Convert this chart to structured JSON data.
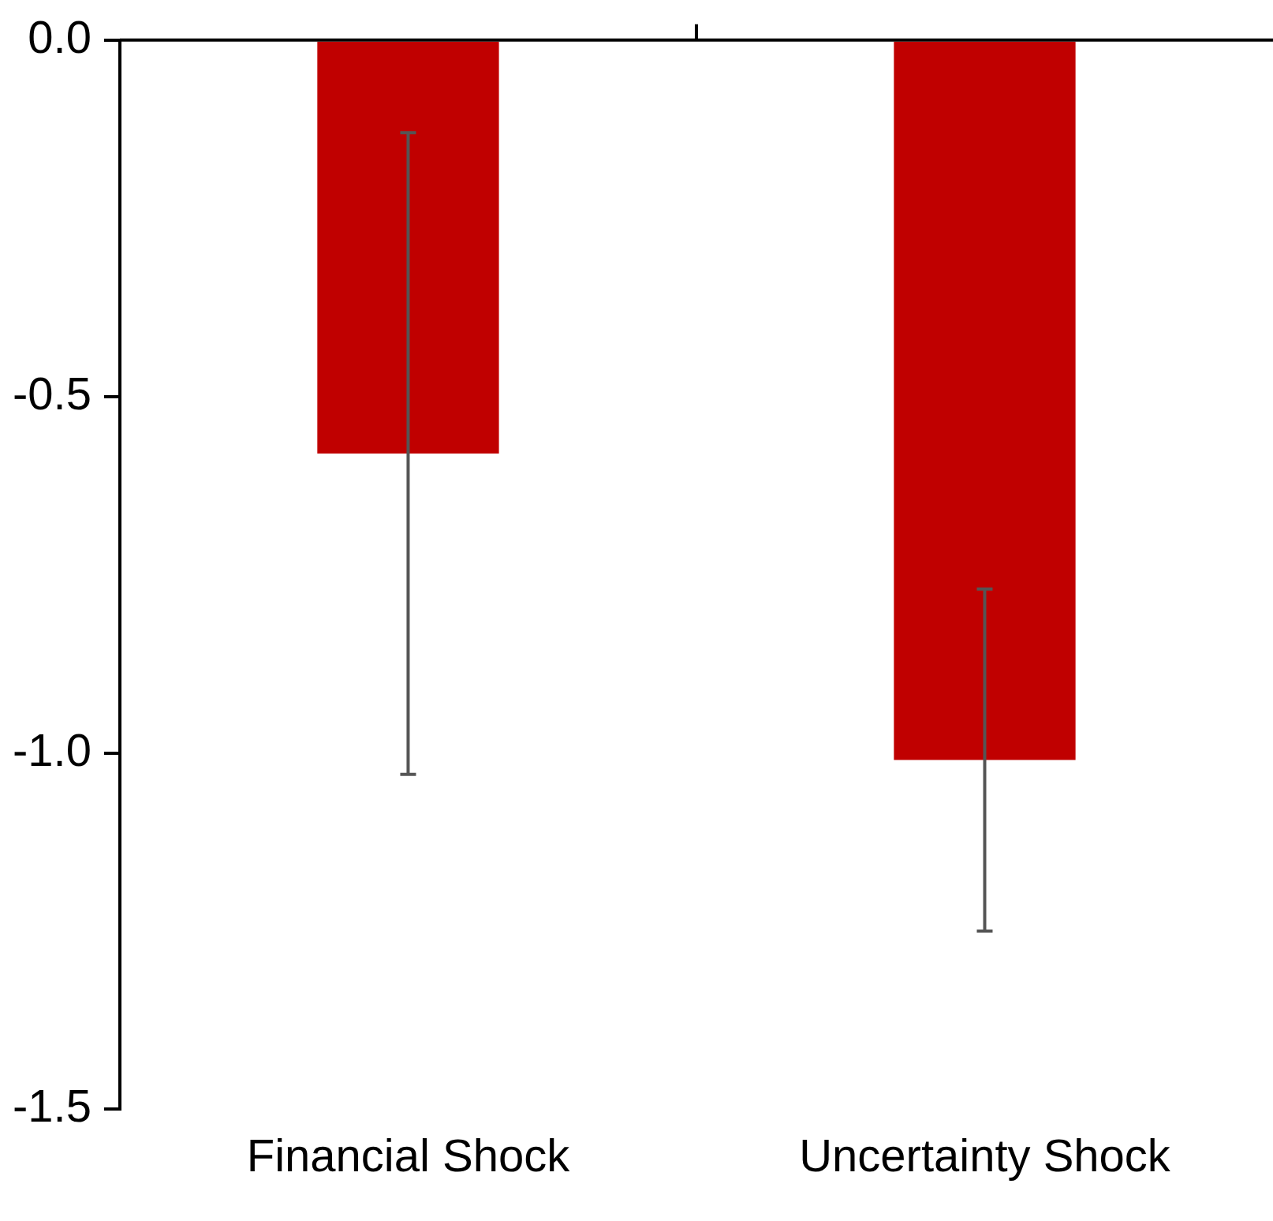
{
  "chart_data": {
    "type": "bar",
    "categories": [
      "Financial Shock",
      "Uncertainty Shock"
    ],
    "values": [
      -0.58,
      -1.01
    ],
    "color": "#c00000",
    "errors": [
      [
        -1.03,
        -0.13
      ],
      [
        -1.25,
        -0.77
      ]
    ],
    "ylim": [
      -1.5,
      0
    ],
    "yticks": [
      {
        "value": 0,
        "label": "0.0"
      },
      {
        "value": -0.5,
        "label": "-0.5"
      },
      {
        "value": -1,
        "label": "-1.0"
      },
      {
        "value": -1.5,
        "label": "-1.5"
      }
    ],
    "grid": false,
    "legend": false
  }
}
